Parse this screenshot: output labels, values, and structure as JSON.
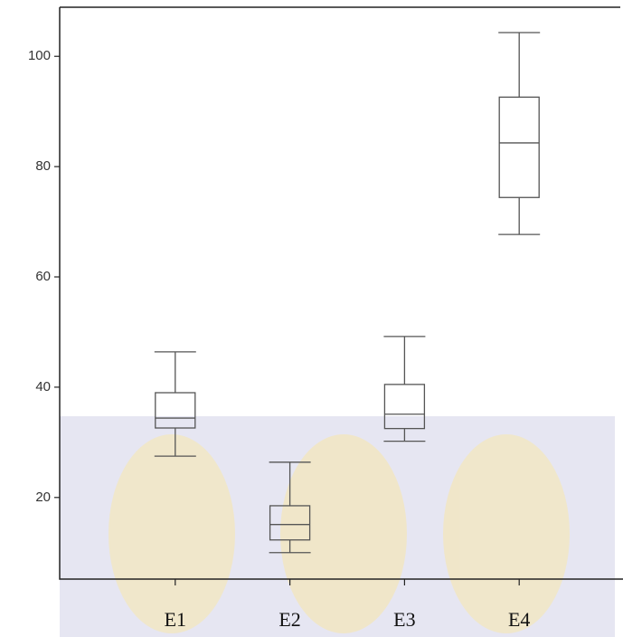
{
  "chart_data": {
    "type": "box",
    "categories": [
      "E1",
      "E2",
      "E3",
      "E4"
    ],
    "boxes": [
      {
        "min": 27.5,
        "q1": 32.6,
        "median": 34.4,
        "q3": 39.0,
        "max": 46.4
      },
      {
        "min": 10.0,
        "q1": 12.3,
        "median": 15.1,
        "q3": 18.5,
        "max": 26.4
      },
      {
        "min": 30.2,
        "q1": 32.5,
        "median": 35.1,
        "q3": 40.5,
        "max": 49.2
      },
      {
        "min": 67.7,
        "q1": 74.4,
        "median": 84.3,
        "q3": 92.6,
        "max": 104.3
      }
    ],
    "color": "#555555",
    "ylim": [
      5.2,
      108.9
    ],
    "yticks": [
      20,
      40,
      60,
      80,
      100
    ]
  }
}
